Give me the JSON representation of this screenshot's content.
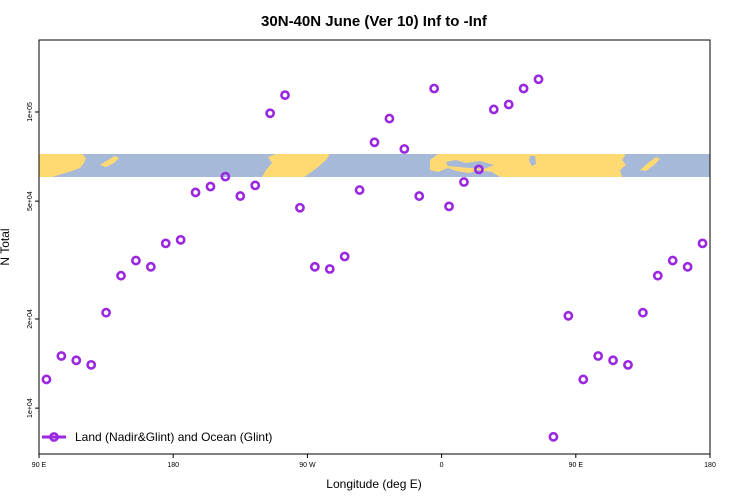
{
  "chart_data": {
    "type": "scatter",
    "title": "30N-40N June (Ver 10)   Inf to -Inf",
    "xlabel": "Longitude (deg E)",
    "ylabel": "N Total",
    "x_scale": "linear",
    "y_scale": "log",
    "xlim": [
      90,
      540
    ],
    "ylim": [
      7000,
      175000
    ],
    "x_ticks": [
      {
        "value": 90,
        "label": "90 E"
      },
      {
        "value": 180,
        "label": "180"
      },
      {
        "value": 270,
        "label": "90 W"
      },
      {
        "value": 360,
        "label": "0"
      },
      {
        "value": 450,
        "label": "90 E"
      },
      {
        "value": 540,
        "label": "180"
      }
    ],
    "y_ticks": [
      {
        "value": 10000,
        "label": "1e+04"
      },
      {
        "value": 20000,
        "label": "2e+04"
      },
      {
        "value": 50000,
        "label": "5e+04"
      },
      {
        "value": 100000,
        "label": "1e+05"
      }
    ],
    "map_band": {
      "lat_range": "30N-40N",
      "land_color": "#FFD972",
      "ocean_color": "#A7B9D8"
    },
    "series": [
      {
        "name": "Land (Nadir&Glint) and Ocean (Glint)",
        "color": "#9A28E0",
        "marker": "open-circle",
        "x": [
          95,
          105,
          115,
          125,
          135,
          145,
          155,
          165,
          175,
          185,
          195,
          205,
          215,
          225,
          235,
          245,
          255,
          265,
          275,
          285,
          295,
          305,
          315,
          325,
          335,
          345,
          355,
          365,
          375,
          385,
          395,
          405,
          415,
          425,
          435,
          445,
          455,
          465,
          475,
          485,
          495,
          505,
          515,
          525,
          535
        ],
        "y": [
          12500,
          15000,
          14500,
          14000,
          21000,
          28000,
          31500,
          30000,
          36000,
          37000,
          53500,
          56000,
          60500,
          52000,
          56500,
          99000,
          114000,
          47500,
          30000,
          29500,
          32500,
          54500,
          79000,
          95000,
          75000,
          52000,
          120000,
          48000,
          58000,
          64000,
          102000,
          106000,
          120000,
          129000,
          8000,
          20500,
          12500,
          15000,
          14500,
          14000,
          21000,
          28000,
          31500,
          30000,
          36000
        ]
      }
    ],
    "legend": {
      "position": "bottom-left"
    },
    "grid": false
  }
}
